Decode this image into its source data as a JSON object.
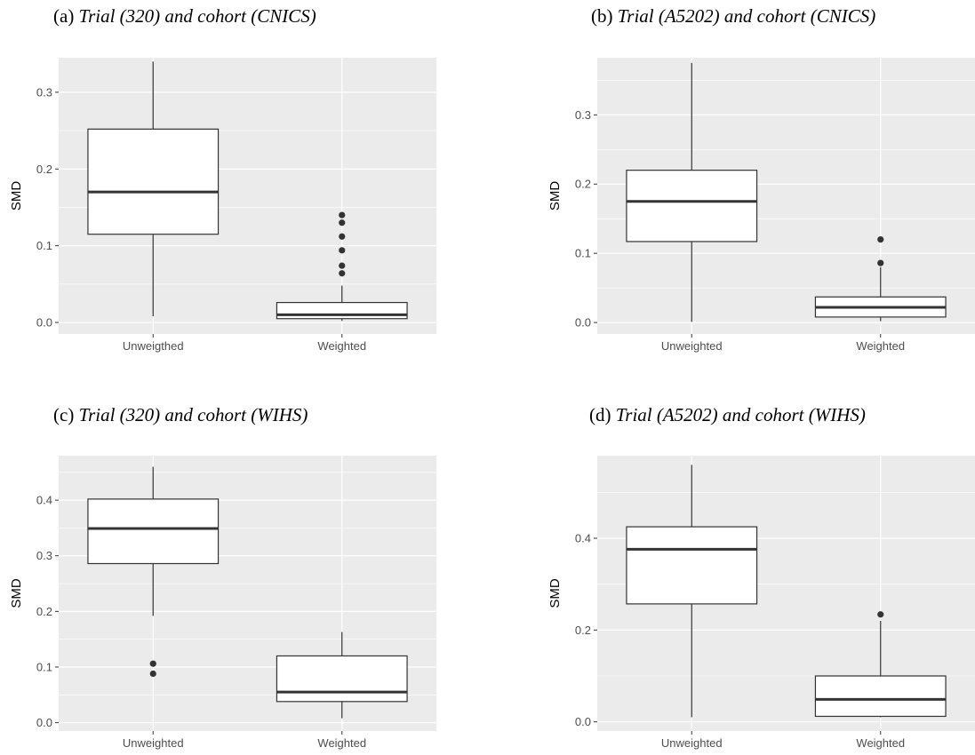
{
  "chart_data": [
    {
      "type": "box",
      "panel_label": "(a)",
      "title": "Trial (320) and cohort (CNICS)",
      "xlabel": "",
      "ylabel": "SMD",
      "categories": [
        "Unweigthed",
        "Weighted"
      ],
      "ylim": [
        -0.015,
        0.345
      ],
      "yticks": [
        0.0,
        0.1,
        0.2,
        0.3
      ],
      "ytick_labels": [
        "0.0",
        "0.1",
        "0.2",
        "0.3"
      ],
      "grid": true,
      "boxes": [
        {
          "category": "Unweigthed",
          "whisker_low": 0.008,
          "q1": 0.115,
          "median": 0.17,
          "q3": 0.252,
          "whisker_high": 0.34,
          "outliers": []
        },
        {
          "category": "Weighted",
          "whisker_low": 0.002,
          "q1": 0.005,
          "median": 0.01,
          "q3": 0.026,
          "whisker_high": 0.048,
          "outliers": [
            0.064,
            0.074,
            0.094,
            0.112,
            0.13,
            0.14
          ]
        }
      ]
    },
    {
      "type": "box",
      "panel_label": "(b)",
      "title": "Trial (A5202) and cohort (CNICS)",
      "xlabel": "",
      "ylabel": "SMD",
      "categories": [
        "Unweighted",
        "Weighted"
      ],
      "ylim": [
        -0.0165,
        0.3825
      ],
      "yticks": [
        0.0,
        0.1,
        0.2,
        0.3
      ],
      "ytick_labels": [
        "0.0",
        "0.1",
        "0.2",
        "0.3"
      ],
      "grid": true,
      "boxes": [
        {
          "category": "Unweighted",
          "whisker_low": 0.001,
          "q1": 0.117,
          "median": 0.175,
          "q3": 0.22,
          "whisker_high": 0.375,
          "outliers": []
        },
        {
          "category": "Weighted",
          "whisker_low": 0.002,
          "q1": 0.008,
          "median": 0.022,
          "q3": 0.037,
          "whisker_high": 0.08,
          "outliers": [
            0.086,
            0.12
          ]
        }
      ]
    },
    {
      "type": "box",
      "panel_label": "(c)",
      "title": "Trial (320) and cohort (WIHS)",
      "xlabel": "",
      "ylabel": "SMD",
      "categories": [
        "Unweighted",
        "Weighted"
      ],
      "ylim": [
        -0.015,
        0.48
      ],
      "yticks": [
        0.0,
        0.1,
        0.2,
        0.3,
        0.4
      ],
      "ytick_labels": [
        "0.0",
        "0.1",
        "0.2",
        "0.3",
        "0.4"
      ],
      "grid": true,
      "boxes": [
        {
          "category": "Unweighted",
          "whisker_low": 0.192,
          "q1": 0.286,
          "median": 0.349,
          "q3": 0.402,
          "whisker_high": 0.46,
          "outliers": [
            0.088,
            0.106
          ]
        },
        {
          "category": "Weighted",
          "whisker_low": 0.008,
          "q1": 0.038,
          "median": 0.055,
          "q3": 0.12,
          "whisker_high": 0.163,
          "outliers": []
        }
      ]
    },
    {
      "type": "box",
      "panel_label": "(d)",
      "title": "Trial (A5202) and cohort (WIHS)",
      "xlabel": "",
      "ylabel": "SMD",
      "categories": [
        "Unweighted",
        "Weighted"
      ],
      "ylim": [
        -0.02,
        0.58
      ],
      "yticks": [
        0.0,
        0.2,
        0.4
      ],
      "ytick_labels": [
        "0.0",
        "0.2",
        "0.4"
      ],
      "grid": true,
      "boxes": [
        {
          "category": "Unweighted",
          "whisker_low": 0.01,
          "q1": 0.257,
          "median": 0.376,
          "q3": 0.425,
          "whisker_high": 0.56,
          "outliers": []
        },
        {
          "category": "Weighted",
          "whisker_low": 0.01,
          "q1": 0.012,
          "median": 0.049,
          "q3": 0.1,
          "whisker_high": 0.22,
          "outliers": [
            0.234
          ]
        }
      ]
    }
  ],
  "colors": {
    "panel_bg": "#ebebeb",
    "grid": "#ffffff",
    "box_fill": "#ffffff",
    "box_line": "#333333",
    "tick_text": "#4d4d4d"
  }
}
